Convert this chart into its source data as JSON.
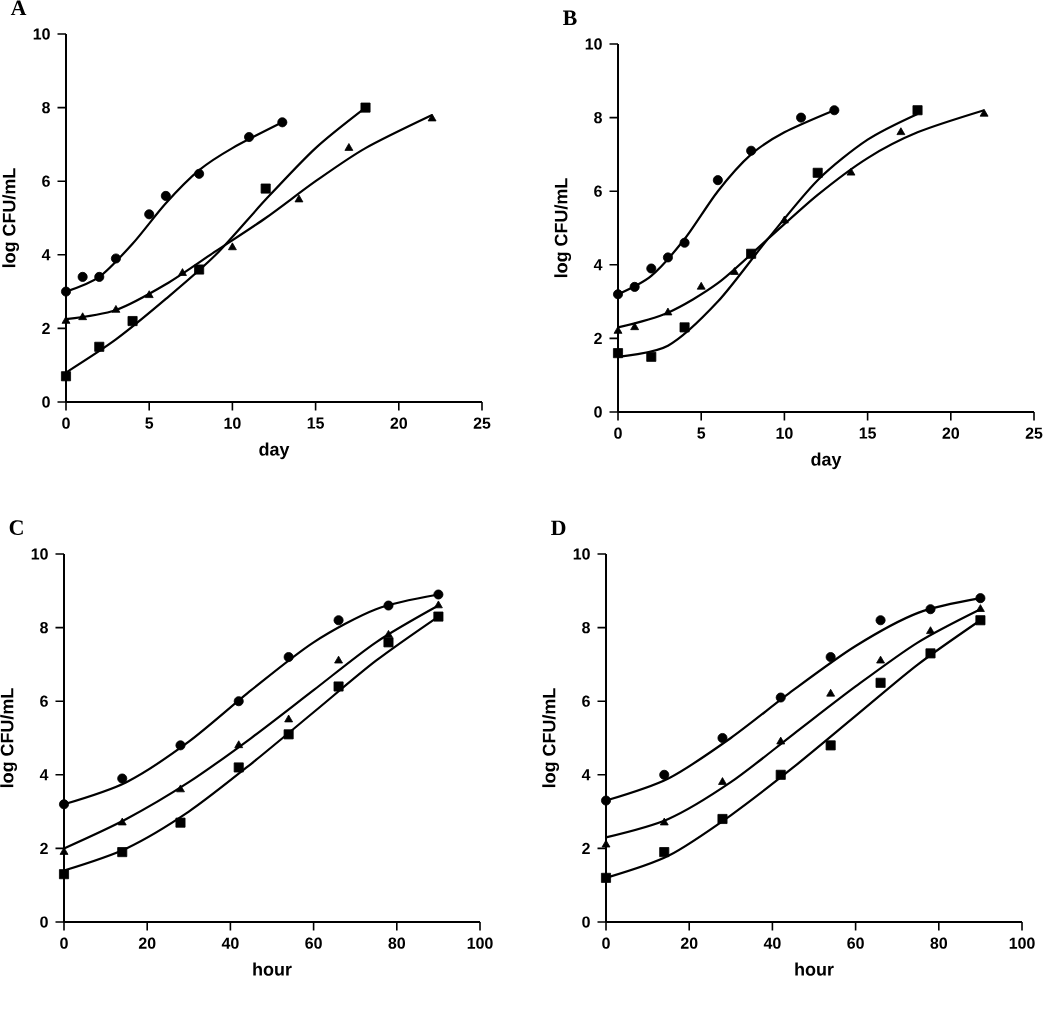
{
  "chart_data": [
    {
      "type": "scatter",
      "title": "A",
      "xlabel": "day",
      "ylabel": "log CFU/mL",
      "xlim": [
        0,
        25
      ],
      "xticks": [
        0,
        5,
        10,
        15,
        20,
        25
      ],
      "ylim": [
        0,
        10
      ],
      "yticks": [
        0,
        2,
        4,
        6,
        8,
        10
      ],
      "series": [
        {
          "marker": "circle",
          "color": "#000000",
          "x": [
            0,
            1,
            2,
            3,
            5,
            6,
            8,
            11,
            13
          ],
          "values": [
            3.0,
            3.4,
            3.4,
            3.9,
            5.1,
            5.6,
            6.2,
            7.2,
            7.6
          ]
        },
        {
          "marker": "triangle",
          "color": "#000000",
          "x": [
            0,
            1,
            3,
            5,
            7,
            10,
            14,
            17,
            22
          ],
          "values": [
            2.2,
            2.3,
            2.5,
            2.9,
            3.5,
            4.2,
            5.5,
            6.9,
            7.7
          ]
        },
        {
          "marker": "square",
          "color": "#000000",
          "x": [
            0,
            2,
            4,
            8,
            12,
            18
          ],
          "values": [
            0.7,
            1.5,
            2.2,
            3.6,
            5.8,
            8.0
          ]
        },
        {
          "type": "line",
          "marker": "none",
          "line_style": "solid",
          "color": "#000000",
          "x": [
            0,
            2,
            4,
            6,
            8,
            10,
            13
          ],
          "values": [
            3.0,
            3.4,
            4.3,
            5.4,
            6.3,
            6.9,
            7.6
          ]
        },
        {
          "type": "line",
          "marker": "none",
          "line_style": "solid",
          "color": "#000000",
          "x": [
            0,
            3,
            6,
            9,
            12,
            15,
            18,
            22
          ],
          "values": [
            2.25,
            2.5,
            3.2,
            4.1,
            5.0,
            6.0,
            6.9,
            7.8
          ]
        },
        {
          "type": "line",
          "marker": "none",
          "line_style": "solid",
          "color": "#000000",
          "x": [
            0,
            3,
            6,
            9,
            12,
            15,
            18
          ],
          "values": [
            0.8,
            1.7,
            2.8,
            4.0,
            5.5,
            6.9,
            8.0
          ]
        }
      ]
    },
    {
      "type": "scatter",
      "title": "B",
      "xlabel": "day",
      "ylabel": "log CFU/mL",
      "xlim": [
        0,
        25
      ],
      "xticks": [
        0,
        5,
        10,
        15,
        20,
        25
      ],
      "ylim": [
        0,
        10
      ],
      "yticks": [
        0,
        2,
        4,
        6,
        8,
        10
      ],
      "series": [
        {
          "marker": "circle",
          "color": "#000000",
          "x": [
            0,
            1,
            2,
            3,
            4,
            6,
            8,
            11,
            13
          ],
          "values": [
            3.2,
            3.4,
            3.9,
            4.2,
            4.6,
            6.3,
            7.1,
            8.0,
            8.2
          ]
        },
        {
          "marker": "triangle",
          "color": "#000000",
          "x": [
            0,
            1,
            3,
            5,
            7,
            10,
            14,
            17,
            22
          ],
          "values": [
            2.2,
            2.3,
            2.7,
            3.4,
            3.8,
            5.2,
            6.5,
            7.6,
            8.1
          ]
        },
        {
          "marker": "square",
          "color": "#000000",
          "x": [
            0,
            2,
            4,
            8,
            12,
            18
          ],
          "values": [
            1.6,
            1.5,
            2.3,
            4.3,
            6.5,
            8.2
          ]
        },
        {
          "type": "line",
          "marker": "none",
          "line_style": "solid",
          "color": "#000000",
          "x": [
            0,
            2,
            4,
            6,
            8,
            10,
            13
          ],
          "values": [
            3.2,
            3.7,
            4.7,
            6.0,
            7.0,
            7.6,
            8.2
          ]
        },
        {
          "type": "line",
          "marker": "none",
          "line_style": "solid",
          "color": "#000000",
          "x": [
            0,
            3,
            6,
            9,
            12,
            15,
            18,
            22
          ],
          "values": [
            2.3,
            2.7,
            3.5,
            4.7,
            5.9,
            6.9,
            7.6,
            8.2
          ]
        },
        {
          "type": "line",
          "marker": "none",
          "line_style": "solid",
          "color": "#000000",
          "x": [
            0,
            3,
            6,
            9,
            12,
            15,
            18
          ],
          "values": [
            1.5,
            1.8,
            3.0,
            4.7,
            6.3,
            7.4,
            8.1
          ]
        }
      ]
    },
    {
      "type": "scatter",
      "title": "C",
      "xlabel": "hour",
      "ylabel": "log CFU/mL",
      "xlim": [
        0,
        100
      ],
      "xticks": [
        0,
        20,
        40,
        60,
        80,
        100
      ],
      "ylim": [
        0,
        10
      ],
      "yticks": [
        0,
        2,
        4,
        6,
        8,
        10
      ],
      "series": [
        {
          "marker": "circle",
          "color": "#000000",
          "x": [
            0,
            14,
            28,
            42,
            54,
            66,
            78,
            90
          ],
          "values": [
            3.2,
            3.9,
            4.8,
            6.0,
            7.2,
            8.2,
            8.6,
            8.9
          ]
        },
        {
          "marker": "triangle",
          "color": "#000000",
          "x": [
            0,
            14,
            28,
            42,
            54,
            66,
            78,
            90
          ],
          "values": [
            1.9,
            2.7,
            3.6,
            4.8,
            5.5,
            7.1,
            7.8,
            8.6
          ]
        },
        {
          "marker": "square",
          "color": "#000000",
          "x": [
            0,
            14,
            28,
            42,
            54,
            66,
            78,
            90
          ],
          "values": [
            1.3,
            1.9,
            2.7,
            4.2,
            5.1,
            6.4,
            7.6,
            8.3
          ]
        },
        {
          "type": "line",
          "marker": "none",
          "line_style": "solid",
          "color": "#000000",
          "x": [
            0,
            15,
            30,
            45,
            60,
            75,
            90
          ],
          "values": [
            3.2,
            3.8,
            4.9,
            6.3,
            7.6,
            8.5,
            8.9
          ]
        },
        {
          "type": "line",
          "marker": "none",
          "line_style": "solid",
          "color": "#000000",
          "x": [
            0,
            15,
            30,
            45,
            60,
            75,
            90
          ],
          "values": [
            2.0,
            2.8,
            3.8,
            5.0,
            6.3,
            7.6,
            8.6
          ]
        },
        {
          "type": "line",
          "marker": "none",
          "line_style": "solid",
          "color": "#000000",
          "x": [
            0,
            15,
            30,
            45,
            60,
            75,
            90
          ],
          "values": [
            1.4,
            2.0,
            3.0,
            4.3,
            5.7,
            7.1,
            8.3
          ]
        }
      ]
    },
    {
      "type": "scatter",
      "title": "D",
      "xlabel": "hour",
      "ylabel": "log CFU/mL",
      "xlim": [
        0,
        100
      ],
      "xticks": [
        0,
        20,
        40,
        60,
        80,
        100
      ],
      "ylim": [
        0,
        10
      ],
      "yticks": [
        0,
        2,
        4,
        6,
        8,
        10
      ],
      "series": [
        {
          "marker": "circle",
          "color": "#000000",
          "x": [
            0,
            14,
            28,
            42,
            54,
            66,
            78,
            90
          ],
          "values": [
            3.3,
            4.0,
            5.0,
            6.1,
            7.2,
            8.2,
            8.5,
            8.8
          ]
        },
        {
          "marker": "triangle",
          "color": "#000000",
          "x": [
            0,
            14,
            28,
            42,
            54,
            66,
            78,
            90
          ],
          "values": [
            2.1,
            2.7,
            3.8,
            4.9,
            6.2,
            7.1,
            7.9,
            8.5
          ]
        },
        {
          "marker": "square",
          "color": "#000000",
          "x": [
            0,
            14,
            28,
            42,
            54,
            66,
            78,
            90
          ],
          "values": [
            1.2,
            1.9,
            2.8,
            4.0,
            4.8,
            6.5,
            7.3,
            8.2
          ]
        },
        {
          "type": "line",
          "marker": "none",
          "line_style": "solid",
          "color": "#000000",
          "x": [
            0,
            15,
            30,
            45,
            60,
            75,
            90
          ],
          "values": [
            3.3,
            3.9,
            5.0,
            6.3,
            7.5,
            8.4,
            8.8
          ]
        },
        {
          "type": "line",
          "marker": "none",
          "line_style": "solid",
          "color": "#000000",
          "x": [
            0,
            15,
            30,
            45,
            60,
            75,
            90
          ],
          "values": [
            2.3,
            2.8,
            3.8,
            5.1,
            6.4,
            7.6,
            8.5
          ]
        },
        {
          "type": "line",
          "marker": "none",
          "line_style": "solid",
          "color": "#000000",
          "x": [
            0,
            15,
            30,
            45,
            60,
            75,
            90
          ],
          "values": [
            1.2,
            1.8,
            2.9,
            4.2,
            5.6,
            7.0,
            8.2
          ]
        }
      ]
    }
  ]
}
